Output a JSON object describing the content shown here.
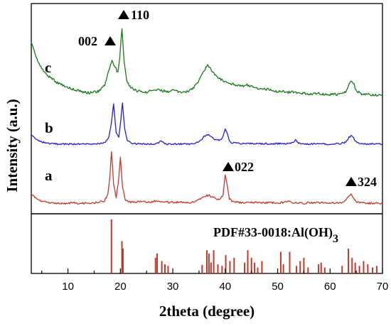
{
  "chart_data": {
    "type": "line",
    "xlabel": "2theta (degree)",
    "ylabel": "Intensity (a.u.)",
    "xlim": [
      3,
      70
    ],
    "x_ticks": [
      10,
      20,
      30,
      40,
      50,
      60,
      70
    ],
    "series": [
      {
        "name": "a",
        "color": "#c0392b",
        "x": [
          3,
          4,
          5,
          6,
          7,
          8,
          9,
          10,
          11,
          12,
          13,
          14,
          15,
          16,
          17,
          17.6,
          18.0,
          18.3,
          18.7,
          19.2,
          19.6,
          20.0,
          20.4,
          20.9,
          21.5,
          22,
          23,
          24,
          25,
          26,
          27,
          28,
          29,
          30,
          31,
          32,
          33,
          34,
          35,
          36,
          36.8,
          37.5,
          38.3,
          39,
          39.6,
          40.0,
          40.4,
          40.8,
          41.3,
          42,
          43,
          44,
          45,
          46,
          47,
          48,
          49,
          50,
          51,
          52,
          53,
          54,
          55,
          56,
          57,
          58,
          59,
          60,
          61,
          62,
          63,
          63.6,
          64.0,
          64.5,
          65,
          66,
          67,
          68,
          69,
          70
        ],
        "y": [
          0.22,
          0.14,
          0.09,
          0.07,
          0.06,
          0.05,
          0.05,
          0.05,
          0.06,
          0.05,
          0.05,
          0.05,
          0.06,
          0.07,
          0.1,
          0.22,
          0.55,
          1.0,
          0.42,
          0.16,
          0.42,
          0.9,
          0.36,
          0.12,
          0.08,
          0.07,
          0.07,
          0.08,
          0.07,
          0.08,
          0.1,
          0.08,
          0.07,
          0.07,
          0.07,
          0.07,
          0.06,
          0.07,
          0.12,
          0.18,
          0.2,
          0.17,
          0.13,
          0.13,
          0.2,
          0.58,
          0.38,
          0.14,
          0.08,
          0.07,
          0.06,
          0.06,
          0.07,
          0.06,
          0.06,
          0.06,
          0.06,
          0.06,
          0.06,
          0.08,
          0.06,
          0.06,
          0.05,
          0.06,
          0.06,
          0.06,
          0.06,
          0.06,
          0.06,
          0.06,
          0.1,
          0.18,
          0.22,
          0.14,
          0.08,
          0.06,
          0.05,
          0.05,
          0.05,
          0.05
        ]
      },
      {
        "name": "b",
        "color": "#1f1fd6",
        "x": [
          3,
          4,
          5,
          6,
          7,
          8,
          9,
          10,
          11,
          12,
          13,
          14,
          15,
          16,
          17,
          17.8,
          18.3,
          18.7,
          19.2,
          19.7,
          20.1,
          20.4,
          20.8,
          21.3,
          22,
          23,
          24,
          25,
          26,
          27,
          27.8,
          28.3,
          29,
          30,
          31,
          32,
          33,
          34,
          35,
          36,
          36.8,
          37.5,
          38.3,
          39,
          39.6,
          40.0,
          40.4,
          40.8,
          41.3,
          42,
          43,
          44,
          45,
          46,
          47,
          48,
          49,
          50,
          51,
          52,
          53,
          53.4,
          54,
          55,
          56,
          57,
          58,
          59,
          60,
          61,
          62,
          63,
          63.6,
          64.0,
          64.5,
          65,
          66,
          67,
          68,
          69,
          70
        ],
        "y": [
          0.25,
          0.16,
          0.1,
          0.07,
          0.06,
          0.05,
          0.05,
          0.05,
          0.05,
          0.05,
          0.05,
          0.05,
          0.06,
          0.06,
          0.08,
          0.2,
          0.55,
          0.95,
          0.3,
          0.2,
          0.6,
          1.0,
          0.4,
          0.14,
          0.08,
          0.06,
          0.05,
          0.05,
          0.05,
          0.06,
          0.12,
          0.07,
          0.05,
          0.05,
          0.05,
          0.05,
          0.05,
          0.06,
          0.1,
          0.22,
          0.28,
          0.2,
          0.14,
          0.14,
          0.22,
          0.4,
          0.3,
          0.12,
          0.08,
          0.07,
          0.06,
          0.06,
          0.06,
          0.06,
          0.06,
          0.06,
          0.06,
          0.06,
          0.06,
          0.06,
          0.08,
          0.15,
          0.07,
          0.06,
          0.05,
          0.06,
          0.06,
          0.05,
          0.05,
          0.06,
          0.06,
          0.1,
          0.2,
          0.24,
          0.18,
          0.1,
          0.06,
          0.05,
          0.05,
          0.05,
          0.05
        ]
      },
      {
        "name": "c",
        "color": "#1a7a1a",
        "x": [
          3,
          3.5,
          4,
          5,
          6,
          7,
          8,
          9,
          10,
          11,
          12,
          13,
          14,
          15,
          16,
          17,
          17.8,
          18.4,
          19.0,
          19.5,
          19.9,
          20.3,
          20.7,
          21.2,
          22,
          23,
          24,
          25,
          26,
          27,
          28,
          29,
          30,
          31,
          32,
          33,
          34,
          35,
          36,
          36.6,
          37.2,
          38,
          39,
          40,
          41,
          42,
          43,
          44,
          45,
          46,
          47,
          48,
          49,
          50,
          51,
          52,
          53,
          54,
          55,
          56,
          57,
          58,
          59,
          60,
          61,
          62,
          63,
          63.6,
          64.1,
          64.6,
          65,
          66,
          67,
          68,
          69,
          70
        ],
        "y": [
          0.82,
          0.7,
          0.58,
          0.45,
          0.36,
          0.3,
          0.25,
          0.22,
          0.19,
          0.16,
          0.14,
          0.12,
          0.11,
          0.12,
          0.14,
          0.22,
          0.42,
          0.55,
          0.48,
          0.38,
          0.62,
          1.0,
          0.55,
          0.28,
          0.18,
          0.14,
          0.13,
          0.12,
          0.14,
          0.16,
          0.14,
          0.13,
          0.14,
          0.13,
          0.12,
          0.13,
          0.18,
          0.28,
          0.42,
          0.5,
          0.45,
          0.36,
          0.3,
          0.26,
          0.24,
          0.22,
          0.2,
          0.22,
          0.2,
          0.18,
          0.16,
          0.16,
          0.14,
          0.13,
          0.13,
          0.12,
          0.12,
          0.11,
          0.1,
          0.1,
          0.1,
          0.1,
          0.09,
          0.09,
          0.09,
          0.09,
          0.12,
          0.22,
          0.28,
          0.22,
          0.14,
          0.1,
          0.09,
          0.08,
          0.08,
          0.08
        ]
      }
    ],
    "annotations": [
      "002",
      "110",
      "022",
      "324"
    ],
    "reference": {
      "label_main": "PDF#33-0018:Al(OH)",
      "label_sub": "3",
      "color": "#c0392b",
      "positions": [
        18.3,
        20.3,
        20.5,
        26.7,
        27.0,
        27.9,
        28.5,
        29.1,
        35.6,
        36.5,
        36.9,
        37.3,
        37.8,
        38.6,
        39.4,
        40.1,
        40.9,
        41.7,
        43.7,
        44.3,
        45.0,
        45.6,
        46.2,
        47.0,
        50.6,
        51.1,
        52.3,
        53.6,
        54.3,
        55.0,
        55.8,
        57.8,
        58.3,
        59.0,
        62.3,
        63.5,
        64.2,
        64.8,
        65.6,
        66.4,
        67.2,
        68.1,
        68.9
      ],
      "intensities": [
        1.0,
        0.6,
        0.46,
        0.29,
        0.37,
        0.23,
        0.17,
        0.14,
        0.16,
        0.43,
        0.37,
        0.2,
        0.43,
        0.17,
        0.14,
        0.34,
        0.23,
        0.29,
        0.2,
        0.43,
        0.29,
        0.2,
        0.11,
        0.23,
        0.4,
        0.17,
        0.4,
        0.14,
        0.23,
        0.29,
        0.11,
        0.17,
        0.2,
        0.11,
        0.14,
        0.46,
        0.29,
        0.2,
        0.14,
        0.23,
        0.17,
        0.11,
        0.14
      ]
    }
  }
}
